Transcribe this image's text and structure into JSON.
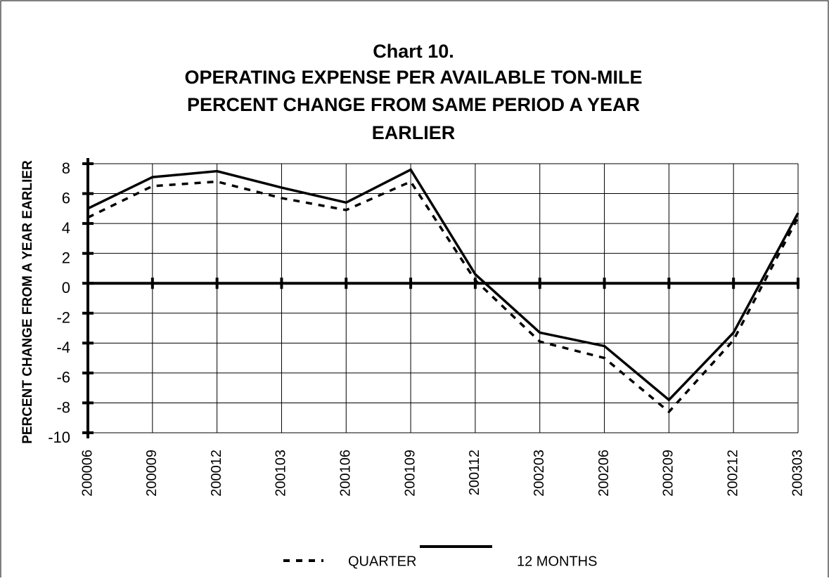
{
  "chart_data": {
    "type": "line",
    "title": "Chart 10.",
    "subtitle": [
      "OPERATING EXPENSE PER AVAILABLE TON-MILE",
      "PERCENT CHANGE FROM SAME PERIOD A YEAR",
      "EARLIER"
    ],
    "y_label": "PERCENT CHANGE FROM A YEAR EARLIER",
    "categories": [
      "200006",
      "200009",
      "200012",
      "200103",
      "200106",
      "200109",
      "200112",
      "200203",
      "200206",
      "200209",
      "200212",
      "200303"
    ],
    "series": [
      {
        "name": "QUARTER",
        "color": "#000000",
        "dash": true,
        "values": [
          4.4,
          6.5,
          6.8,
          5.7,
          4.9,
          6.8,
          0.2,
          -3.9,
          -5.0,
          -8.6,
          -3.8,
          4.4
        ]
      },
      {
        "name": "12 MONTHS",
        "color": "#000000",
        "dash": false,
        "values": [
          5.0,
          7.1,
          7.5,
          6.4,
          5.4,
          7.6,
          0.6,
          -3.3,
          -4.2,
          -7.8,
          -3.3,
          4.7
        ]
      }
    ],
    "ylim": [
      -10,
      8
    ],
    "yticks": [
      -10,
      -8,
      -6,
      -4,
      -2,
      0,
      2,
      4,
      6,
      8
    ],
    "grid": true,
    "legend": "bottom"
  }
}
